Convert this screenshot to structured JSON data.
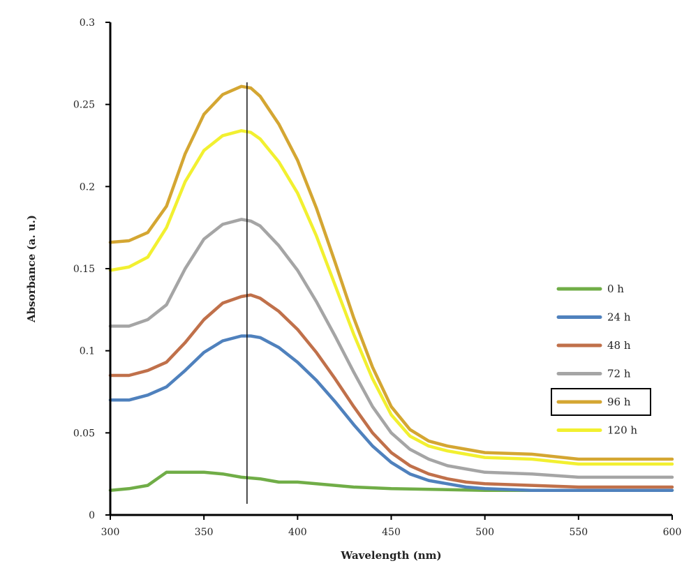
{
  "chart_data": {
    "type": "line",
    "title": "",
    "xlabel": "Wavelength (nm)",
    "ylabel": "Absorbance (a. u.)",
    "xlim": [
      300,
      600
    ],
    "ylim": [
      0,
      0.3
    ],
    "x_ticks": [
      "300",
      "350",
      "400",
      "450",
      "500",
      "550",
      "600"
    ],
    "y_ticks": [
      "0",
      "0.05",
      "0.1",
      "0.15",
      "0.2",
      "0.25",
      "0.3"
    ],
    "grid": false,
    "legend_position": "right",
    "highlighted_legend_entry": "96 h",
    "peak_marker_x": 373,
    "series": [
      {
        "name": "0 h",
        "color": "#70ad47",
        "x": [
          300,
          310,
          320,
          325,
          330,
          340,
          350,
          360,
          370,
          380,
          390,
          400,
          410,
          420,
          430,
          450,
          500,
          550,
          600
        ],
        "y": [
          0.015,
          0.016,
          0.018,
          0.022,
          0.026,
          0.026,
          0.026,
          0.025,
          0.023,
          0.022,
          0.02,
          0.02,
          0.019,
          0.018,
          0.017,
          0.016,
          0.015,
          0.015,
          0.015
        ]
      },
      {
        "name": "24 h",
        "color": "#4f81bd",
        "x": [
          300,
          310,
          320,
          330,
          340,
          350,
          360,
          370,
          375,
          380,
          390,
          400,
          410,
          420,
          430,
          440,
          450,
          460,
          470,
          480,
          490,
          500,
          525,
          550,
          600
        ],
        "y": [
          0.07,
          0.07,
          0.073,
          0.078,
          0.088,
          0.099,
          0.106,
          0.109,
          0.109,
          0.108,
          0.102,
          0.093,
          0.082,
          0.069,
          0.055,
          0.042,
          0.032,
          0.025,
          0.021,
          0.019,
          0.017,
          0.016,
          0.015,
          0.015,
          0.015
        ]
      },
      {
        "name": "48 h",
        "color": "#c0704a",
        "x": [
          300,
          310,
          320,
          330,
          340,
          350,
          360,
          370,
          375,
          380,
          390,
          400,
          410,
          420,
          430,
          440,
          450,
          460,
          470,
          480,
          490,
          500,
          525,
          550,
          600
        ],
        "y": [
          0.085,
          0.085,
          0.088,
          0.093,
          0.105,
          0.119,
          0.129,
          0.133,
          0.134,
          0.132,
          0.124,
          0.113,
          0.099,
          0.083,
          0.066,
          0.05,
          0.038,
          0.03,
          0.025,
          0.022,
          0.02,
          0.019,
          0.018,
          0.017,
          0.017
        ]
      },
      {
        "name": "72 h",
        "color": "#a5a5a5",
        "x": [
          300,
          310,
          320,
          330,
          340,
          350,
          360,
          370,
          375,
          380,
          390,
          400,
          410,
          420,
          430,
          440,
          450,
          460,
          470,
          480,
          490,
          500,
          525,
          550,
          600
        ],
        "y": [
          0.115,
          0.115,
          0.119,
          0.128,
          0.15,
          0.168,
          0.177,
          0.18,
          0.179,
          0.176,
          0.164,
          0.149,
          0.13,
          0.109,
          0.087,
          0.066,
          0.05,
          0.04,
          0.034,
          0.03,
          0.028,
          0.026,
          0.025,
          0.023,
          0.023
        ]
      },
      {
        "name": "96 h",
        "color": "#d4a632",
        "x": [
          300,
          310,
          320,
          330,
          340,
          350,
          360,
          370,
          375,
          380,
          390,
          400,
          410,
          420,
          430,
          440,
          450,
          460,
          470,
          480,
          490,
          500,
          525,
          550,
          600
        ],
        "y": [
          0.166,
          0.167,
          0.172,
          0.188,
          0.22,
          0.244,
          0.256,
          0.261,
          0.26,
          0.255,
          0.238,
          0.216,
          0.187,
          0.154,
          0.12,
          0.09,
          0.066,
          0.052,
          0.045,
          0.042,
          0.04,
          0.038,
          0.037,
          0.034,
          0.034
        ]
      },
      {
        "name": "120 h",
        "color": "#f2f030",
        "x": [
          300,
          310,
          320,
          330,
          340,
          350,
          360,
          370,
          375,
          380,
          390,
          400,
          410,
          420,
          430,
          440,
          450,
          460,
          470,
          480,
          490,
          500,
          525,
          550,
          600
        ],
        "y": [
          0.149,
          0.151,
          0.157,
          0.175,
          0.203,
          0.222,
          0.231,
          0.234,
          0.233,
          0.229,
          0.215,
          0.196,
          0.17,
          0.14,
          0.11,
          0.083,
          0.061,
          0.048,
          0.042,
          0.039,
          0.037,
          0.035,
          0.034,
          0.031,
          0.031
        ]
      }
    ]
  }
}
